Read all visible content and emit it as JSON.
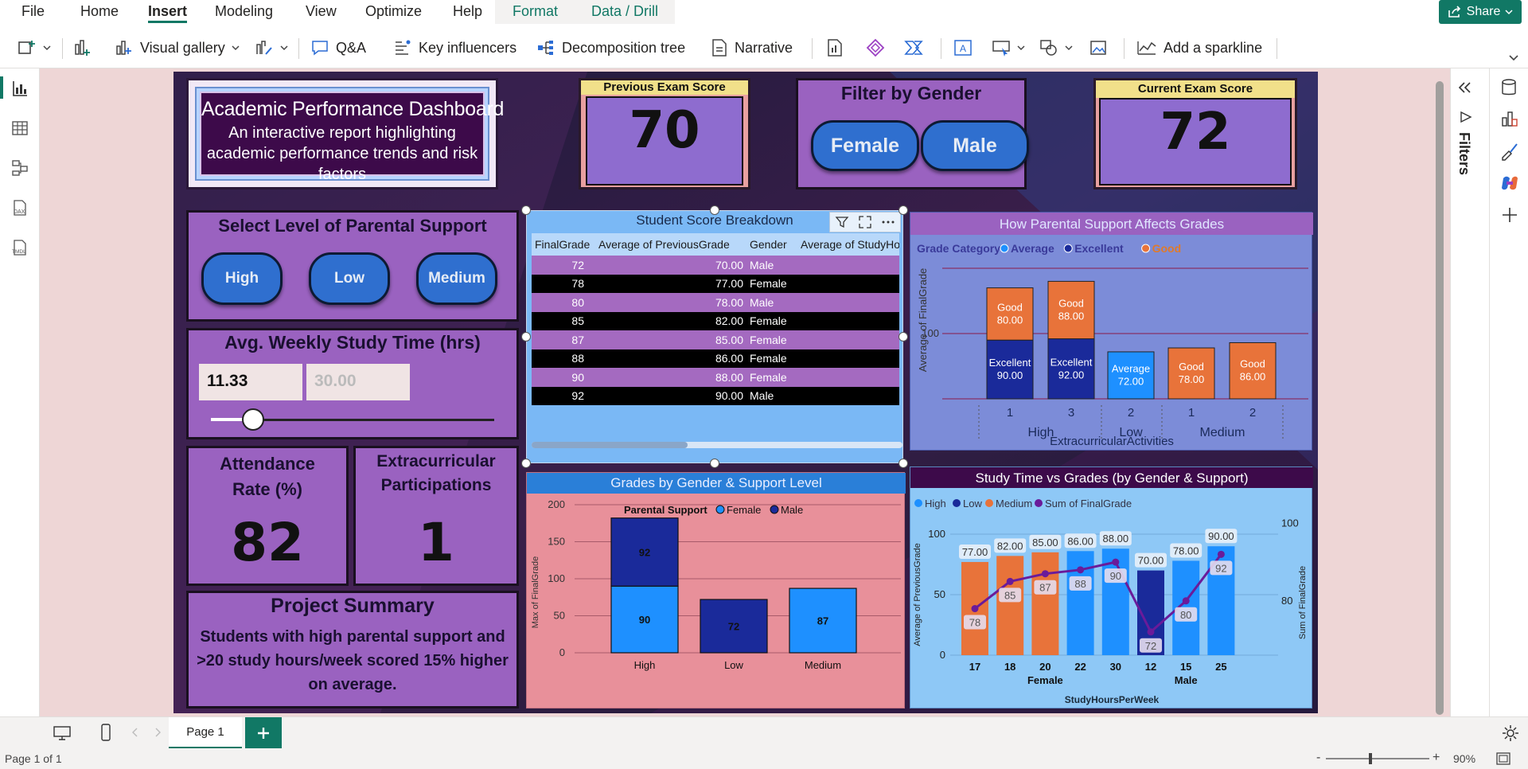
{
  "menu": {
    "file": "File",
    "home": "Home",
    "insert": "Insert",
    "modeling": "Modeling",
    "view": "View",
    "optimize": "Optimize",
    "help": "Help",
    "format": "Format",
    "data_drill": "Data / Drill",
    "share": "Share"
  },
  "toolbar": {
    "visual_gallery": "Visual gallery",
    "qa": "Q&A",
    "key_influencers": "Key influencers",
    "decomposition_tree": "Decomposition tree",
    "narrative": "Narrative",
    "add_sparkline": "Add a sparkline"
  },
  "right_pane": {
    "filters": "Filters"
  },
  "bottom": {
    "page_tab": "Page 1",
    "page_count": "Page 1 of 1",
    "zoom": "90%"
  },
  "colors": {
    "accent": "#117865",
    "card_purple": "#8e6ccf",
    "pill_blue": "#2f6fcf",
    "series_light_blue": "#1e90ff",
    "series_dark_blue": "#1a2a9a",
    "series_orange": "#e8733a",
    "line_purple": "#6a1b9a"
  },
  "dashboard": {
    "title": "Academic Performance Dashboard",
    "subtitle": "An interactive report highlighting academic performance trends and risk factors",
    "previous_exam": {
      "label": "Previous Exam Score",
      "value": "70"
    },
    "gender_filter": {
      "label": "Filter by Gender",
      "options": [
        "Female",
        "Male"
      ]
    },
    "current_exam": {
      "label": "Current Exam Score",
      "value": "72"
    },
    "parental_support": {
      "label": "Select Level of Parental Support",
      "options": [
        "High",
        "Low",
        "Medium"
      ]
    },
    "study_time": {
      "label": "Avg. Weekly Study Time (hrs)",
      "min": "11.33",
      "max": "30.00",
      "slider_fraction": 0.15
    },
    "attendance": {
      "label": "Attendance Rate (%)",
      "value": "82"
    },
    "extracurricular": {
      "label": "Extracurricular Participations",
      "value": "1"
    },
    "summary": {
      "title": "Project Summary",
      "text": "Students with high parental support and >20 study hours/week scored 15% higher on average."
    }
  },
  "score_table": {
    "title": "Student Score Breakdown",
    "columns": [
      "FinalGrade",
      "Average of PreviousGrade",
      "Gender",
      "Average of StudyHo"
    ],
    "rows": [
      [
        "72",
        "70.00",
        "Male"
      ],
      [
        "78",
        "77.00",
        "Female"
      ],
      [
        "80",
        "78.00",
        "Male"
      ],
      [
        "85",
        "82.00",
        "Female"
      ],
      [
        "87",
        "85.00",
        "Female"
      ],
      [
        "88",
        "86.00",
        "Female"
      ],
      [
        "90",
        "88.00",
        "Female"
      ],
      [
        "92",
        "90.00",
        "Male"
      ]
    ]
  },
  "chart_data": [
    {
      "id": "parental",
      "type": "bar",
      "title": "How Parental Support Affects Grades",
      "legend_title": "Grade Category",
      "legend": [
        "Average",
        "Excellent",
        "Good"
      ],
      "legend_position": "top-left",
      "ylabel": "Average of FinalGrade",
      "xlabel": "ExtracurricularActivities",
      "yticks": [
        "100"
      ],
      "y_max": 200,
      "groups": [
        "High",
        "Low",
        "Medium"
      ],
      "bars": [
        {
          "group": "High",
          "x": "1",
          "segments": [
            {
              "category": "Excellent",
              "value": 90,
              "label": "Excellent\n90.00"
            },
            {
              "category": "Good",
              "value": 80,
              "label": "Good\n80.00"
            }
          ]
        },
        {
          "group": "High",
          "x": "3",
          "segments": [
            {
              "category": "Excellent",
              "value": 92,
              "label": "Excellent\n92.00"
            },
            {
              "category": "Good",
              "value": 88,
              "label": "Good\n88.00"
            }
          ]
        },
        {
          "group": "Low",
          "x": "2",
          "segments": [
            {
              "category": "Average",
              "value": 72,
              "label": "Average\n72.00"
            }
          ]
        },
        {
          "group": "Medium",
          "x": "1",
          "segments": [
            {
              "category": "Good",
              "value": 78,
              "label": "Good\n78.00"
            }
          ]
        },
        {
          "group": "Medium",
          "x": "2",
          "segments": [
            {
              "category": "Good",
              "value": 86,
              "label": "Good\n86.00"
            }
          ]
        }
      ]
    },
    {
      "id": "gender",
      "type": "bar",
      "title": "Grades by Gender & Support Level",
      "legend_title": "Parental Support",
      "legend": [
        "Female",
        "Male"
      ],
      "legend_position": "top-center",
      "ylabel": "Max of FinalGrade",
      "ylim": [
        0,
        200
      ],
      "yticks": [
        "0",
        "50",
        "100",
        "150",
        "200"
      ],
      "categories": [
        "High",
        "Low",
        "Medium"
      ],
      "series": [
        {
          "name": "Female",
          "values": [
            90,
            null,
            87
          ]
        },
        {
          "name": "Male",
          "values": [
            92,
            72,
            null
          ]
        }
      ],
      "stack_order": [
        [
          "Female",
          "Male"
        ],
        [
          "Male"
        ],
        [
          "Female"
        ]
      ]
    },
    {
      "id": "studytime",
      "type": "bar",
      "title": "Study Time vs Grades (by Gender & Support)",
      "legend": [
        "High",
        "Low",
        "Medium",
        "Sum of FinalGrade"
      ],
      "legend_position": "top-left",
      "ylabel": "Average of PreviousGrade",
      "y2label": "Sum of FinalGrade",
      "xlabel": "StudyHoursPerWeek",
      "yticks": [
        "0",
        "50",
        "100"
      ],
      "y2ticks": [
        "80",
        "100"
      ],
      "ylim": [
        0,
        100
      ],
      "y2lim": [
        66,
        105
      ],
      "x": [
        "17",
        "18",
        "20",
        "22",
        "30",
        "12",
        "15",
        "25"
      ],
      "groups": [
        "Female",
        "Male"
      ],
      "group_sizes": [
        5,
        3
      ],
      "bar_series": [
        "Medium",
        "Medium",
        "Medium",
        "High",
        "High",
        "Low",
        "High",
        "High"
      ],
      "bar_values": [
        77,
        82,
        85,
        86,
        88,
        70,
        78,
        90
      ],
      "bar_labels": [
        "77.00",
        "82.00",
        "85.00",
        "86.00",
        "88.00",
        "70.00",
        "78.00",
        "90.00"
      ],
      "line_values": [
        78,
        85,
        87,
        88,
        90,
        72,
        80,
        92
      ],
      "line_labels": [
        "78",
        "85",
        "87",
        "88",
        "90",
        "72",
        "80",
        "92"
      ]
    }
  ]
}
